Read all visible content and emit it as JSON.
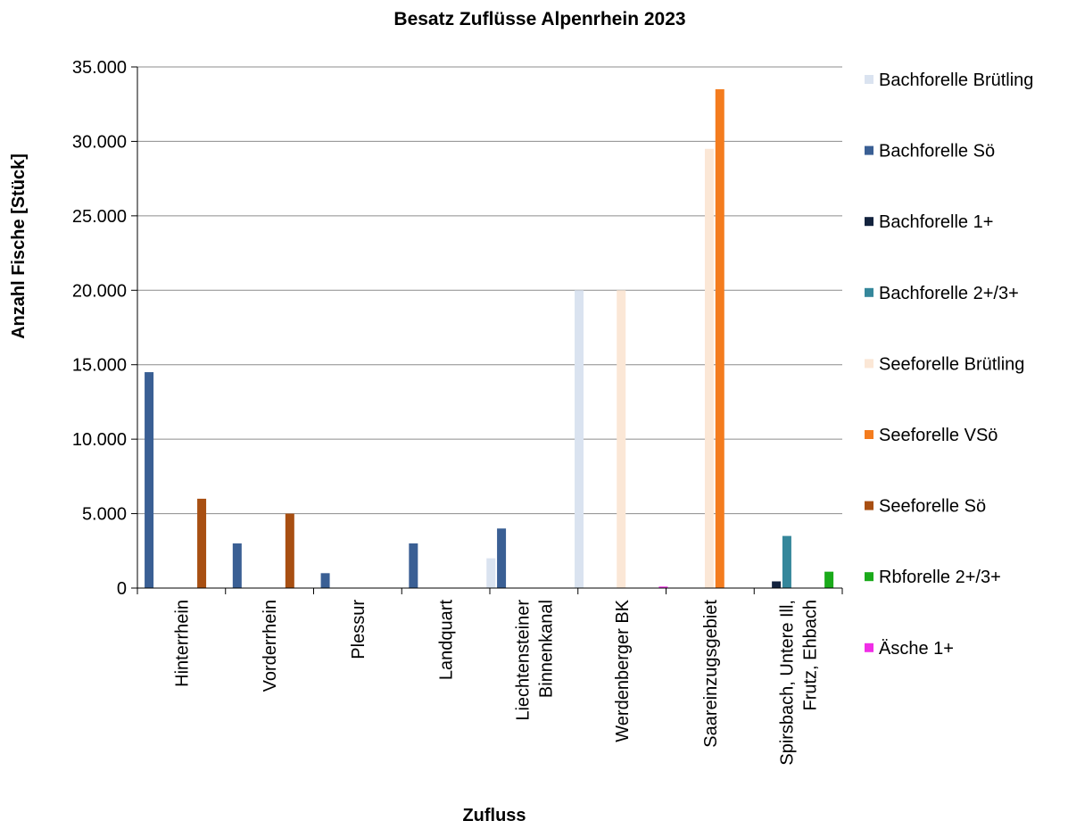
{
  "chart_data": {
    "type": "bar",
    "title": "Besatz Zuflüsse Alpenrhein 2023",
    "xlabel": "Zufluss",
    "ylabel": "Anzahl Fische [Stück]",
    "ylim": [
      0,
      35000
    ],
    "yticks": [
      0,
      5000,
      10000,
      15000,
      20000,
      25000,
      30000,
      35000
    ],
    "ytick_labels": [
      "0",
      "5.000",
      "10.000",
      "15.000",
      "20.000",
      "25.000",
      "30.000",
      "35.000"
    ],
    "grid": true,
    "legend_position": "right",
    "categories": [
      [
        "Hinterrhein"
      ],
      [
        "Vorderrhein"
      ],
      [
        "Plessur"
      ],
      [
        "Landquart"
      ],
      [
        "Liechtensteiner",
        "Binnenkanal"
      ],
      [
        "Werdenberger BK"
      ],
      [
        "Saareinzugsgebiet"
      ],
      [
        "Spirsbach, Untere Ill,",
        "Frutz, Ehbach"
      ]
    ],
    "series": [
      {
        "name": "Bachforelle Brütling",
        "color": "#dae3f0",
        "values": [
          0,
          0,
          0,
          0,
          2000,
          20000,
          0,
          0
        ]
      },
      {
        "name": "Bachforelle Sö",
        "color": "#3a5f94",
        "values": [
          14500,
          3000,
          1000,
          3000,
          4000,
          0,
          0,
          0
        ]
      },
      {
        "name": "Bachforelle 1+",
        "color": "#13233e",
        "values": [
          0,
          0,
          0,
          0,
          0,
          0,
          0,
          450
        ]
      },
      {
        "name": "Bachforelle 2+/3+",
        "color": "#35879b",
        "values": [
          0,
          0,
          0,
          0,
          0,
          0,
          0,
          3500
        ]
      },
      {
        "name": "Seeforelle Brütling",
        "color": "#fbe7d6",
        "values": [
          0,
          0,
          0,
          0,
          0,
          20000,
          29500,
          0
        ]
      },
      {
        "name": "Seeforelle VSö",
        "color": "#f47c1e",
        "values": [
          0,
          0,
          0,
          0,
          0,
          0,
          33500,
          0
        ]
      },
      {
        "name": "Seeforelle Sö",
        "color": "#a84f12",
        "values": [
          6000,
          5000,
          0,
          0,
          0,
          0,
          0,
          0
        ]
      },
      {
        "name": "Rbforelle 2+/3+",
        "color": "#1aaa1a",
        "values": [
          0,
          0,
          0,
          0,
          0,
          0,
          0,
          1100
        ]
      },
      {
        "name": "Äsche 1+",
        "color": "#f02ee6",
        "values": [
          0,
          0,
          0,
          0,
          0,
          100,
          0,
          0
        ]
      }
    ]
  }
}
